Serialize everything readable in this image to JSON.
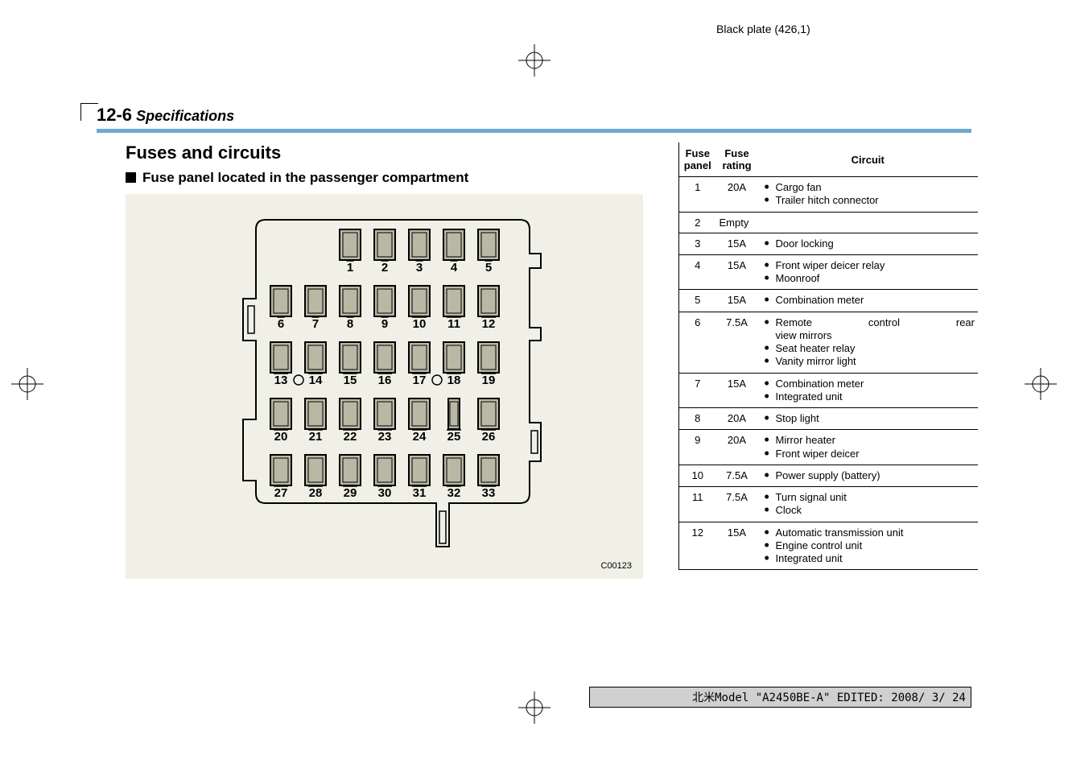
{
  "header_text": "Black plate (426,1)",
  "section_label_num": "12-6",
  "section_label_text": "Specifications",
  "h2": "Fuses and circuits",
  "h3": "Fuse panel located in the passenger compartment",
  "diagram_code": "C00123",
  "footer_text": "北米Model \"A2450BE-A\" EDITED: 2008/ 3/ 24",
  "fuse_diagram": {
    "rows": [
      {
        "y": 0,
        "start": 1,
        "labels": [
          "",
          "",
          "",
          "",
          "",
          "1",
          "2",
          "3",
          "4",
          "5"
        ]
      },
      {
        "y": 1,
        "start": 6,
        "labels": [
          "6",
          "7",
          "8",
          "9",
          "10",
          "11",
          "12"
        ]
      },
      {
        "y": 2,
        "start": 13,
        "labels": [
          "13",
          "14",
          "15",
          "16",
          "17",
          "18",
          "19"
        ],
        "special_o_before": [
          14,
          18
        ]
      },
      {
        "y": 3,
        "start": 20,
        "labels": [
          "20",
          "21",
          "22",
          "23",
          "24",
          "25",
          "26"
        ]
      },
      {
        "y": 4,
        "start": 27,
        "labels": [
          "27",
          "28",
          "29",
          "30",
          "31",
          "32",
          "33"
        ]
      }
    ]
  },
  "table": {
    "headers": [
      "Fuse panel",
      "Fuse rating",
      "Circuit"
    ],
    "rows": [
      {
        "panel": "1",
        "rating": "20A",
        "circuits": [
          "Cargo fan",
          "Trailer hitch connector"
        ]
      },
      {
        "panel": "2",
        "rating": "Empty",
        "circuits": []
      },
      {
        "panel": "3",
        "rating": "15A",
        "circuits": [
          "Door locking"
        ]
      },
      {
        "panel": "4",
        "rating": "15A",
        "circuits": [
          "Front wiper deicer relay",
          "Moonroof"
        ]
      },
      {
        "panel": "5",
        "rating": "15A",
        "circuits": [
          "Combination meter"
        ]
      },
      {
        "panel": "6",
        "rating": "7.5A",
        "circuits": [
          "Remote control rear view mirrors",
          "Seat heater relay",
          "Vanity mirror light"
        ],
        "justify_first": true
      },
      {
        "panel": "7",
        "rating": "15A",
        "circuits": [
          "Combination meter",
          "Integrated unit"
        ]
      },
      {
        "panel": "8",
        "rating": "20A",
        "circuits": [
          "Stop light"
        ]
      },
      {
        "panel": "9",
        "rating": "20A",
        "circuits": [
          "Mirror heater",
          "Front wiper deicer"
        ]
      },
      {
        "panel": "10",
        "rating": "7.5A",
        "circuits": [
          "Power supply (battery)"
        ]
      },
      {
        "panel": "11",
        "rating": "7.5A",
        "circuits": [
          "Turn signal unit",
          "Clock"
        ]
      },
      {
        "panel": "12",
        "rating": "15A",
        "circuits": [
          "Automatic transmission unit",
          "Engine control unit",
          "Integrated unit"
        ],
        "justify_first": true
      }
    ]
  },
  "colors": {
    "rule": "#6ea8d0",
    "diagram_bg": "#f0f0e7",
    "fuse_fill": "#b8b8a5",
    "footer_bg": "#d0d0d0"
  }
}
